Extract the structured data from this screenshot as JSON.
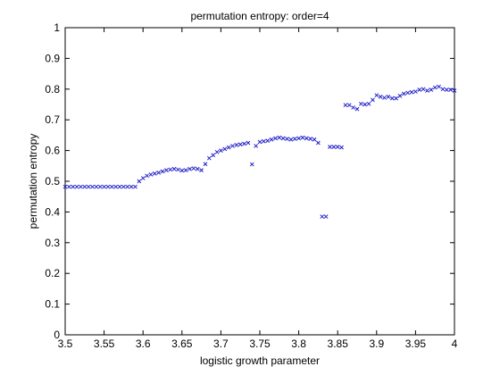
{
  "chart_data": {
    "type": "scatter",
    "title": "permutation entropy: order=4",
    "xlabel": "logistic growth parameter",
    "ylabel": "permutation entropy",
    "xlim": [
      3.5,
      4.0
    ],
    "ylim": [
      0,
      1
    ],
    "grid": false,
    "marker": "x",
    "colors": {
      "marker": "#1f1fc8",
      "axes": "#000000",
      "background": "#ffffff"
    },
    "xticks": [
      "3.5",
      "3.55",
      "3.6",
      "3.65",
      "3.7",
      "3.75",
      "3.8",
      "3.85",
      "3.9",
      "3.95",
      "4"
    ],
    "yticks": [
      "0",
      "0.1",
      "0.2",
      "0.3",
      "0.4",
      "0.5",
      "0.6",
      "0.7",
      "0.8",
      "0.9",
      "1"
    ],
    "series": [
      {
        "x": [
          3.5,
          3.505,
          3.51,
          3.515,
          3.52,
          3.525,
          3.53,
          3.535,
          3.54,
          3.545,
          3.55,
          3.555,
          3.56,
          3.565,
          3.57,
          3.575,
          3.58,
          3.585,
          3.59,
          3.595,
          3.6,
          3.605,
          3.61,
          3.615,
          3.62,
          3.625,
          3.63,
          3.635,
          3.64,
          3.645,
          3.65,
          3.655,
          3.66,
          3.665,
          3.67,
          3.675,
          3.68,
          3.685,
          3.69,
          3.695,
          3.7,
          3.705,
          3.71,
          3.715,
          3.72,
          3.725,
          3.73,
          3.735,
          3.74,
          3.745,
          3.75,
          3.755,
          3.76,
          3.765,
          3.77,
          3.775,
          3.78,
          3.785,
          3.79,
          3.795,
          3.8,
          3.805,
          3.81,
          3.815,
          3.82,
          3.825,
          3.83,
          3.835,
          3.84,
          3.845,
          3.85,
          3.855,
          3.86,
          3.865,
          3.87,
          3.875,
          3.88,
          3.885,
          3.89,
          3.895,
          3.9,
          3.905,
          3.91,
          3.915,
          3.92,
          3.925,
          3.93,
          3.935,
          3.94,
          3.945,
          3.95,
          3.955,
          3.96,
          3.965,
          3.97,
          3.975,
          3.98,
          3.985,
          3.99,
          3.995,
          4.0
        ],
        "y": [
          0.482,
          0.482,
          0.482,
          0.482,
          0.482,
          0.482,
          0.482,
          0.482,
          0.482,
          0.482,
          0.482,
          0.482,
          0.482,
          0.482,
          0.482,
          0.482,
          0.482,
          0.482,
          0.482,
          0.5,
          0.51,
          0.518,
          0.522,
          0.525,
          0.528,
          0.532,
          0.536,
          0.538,
          0.54,
          0.538,
          0.535,
          0.536,
          0.54,
          0.542,
          0.54,
          0.536,
          0.556,
          0.575,
          0.585,
          0.595,
          0.6,
          0.605,
          0.61,
          0.615,
          0.618,
          0.62,
          0.622,
          0.625,
          0.555,
          0.615,
          0.628,
          0.63,
          0.632,
          0.636,
          0.64,
          0.642,
          0.64,
          0.638,
          0.636,
          0.638,
          0.64,
          0.642,
          0.64,
          0.638,
          0.636,
          0.625,
          0.385,
          0.385,
          0.612,
          0.612,
          0.612,
          0.61,
          0.748,
          0.748,
          0.74,
          0.735,
          0.752,
          0.75,
          0.752,
          0.765,
          0.78,
          0.775,
          0.772,
          0.775,
          0.77,
          0.77,
          0.778,
          0.785,
          0.788,
          0.79,
          0.792,
          0.798,
          0.8,
          0.795,
          0.798,
          0.805,
          0.808,
          0.8,
          0.798,
          0.798,
          0.795
        ]
      }
    ]
  }
}
